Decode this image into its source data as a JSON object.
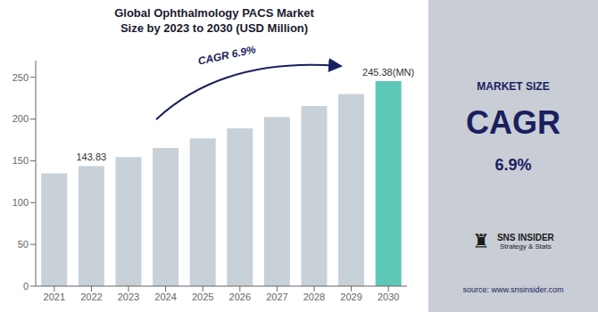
{
  "chart_data": {
    "type": "bar",
    "title": "Global Ophthalmology PACS Market\nSize by 2023 to 2030 (USD Million)",
    "categories": [
      "2021",
      "2022",
      "2023",
      "2024",
      "2025",
      "2026",
      "2027",
      "2028",
      "2029",
      "2030"
    ],
    "values": [
      135.0,
      143.83,
      154.5,
      165.5,
      177.0,
      189.0,
      202.5,
      215.5,
      230.0,
      245.38
    ],
    "value_labels": [
      null,
      "143.83",
      null,
      null,
      null,
      null,
      null,
      null,
      null,
      "245.38(MN)"
    ],
    "colors": [
      "#c8d0d8",
      "#c8d0d8",
      "#c8d0d8",
      "#c8d0d8",
      "#c8d0d8",
      "#c8d0d8",
      "#c8d0d8",
      "#c8d0d8",
      "#c8d0d8",
      "#5ec8b8"
    ],
    "ylim": [
      0,
      270
    ],
    "yticks": [
      0,
      50,
      100,
      150,
      200,
      250
    ],
    "grid": false,
    "annotations": [
      "CAGR 6.9%",
      "MARKET SIZE",
      "CAGR",
      "6.9%",
      "♜",
      "SNS INSIDER",
      "Strategy & Stats",
      "source: www.snsinsider.com"
    ]
  }
}
